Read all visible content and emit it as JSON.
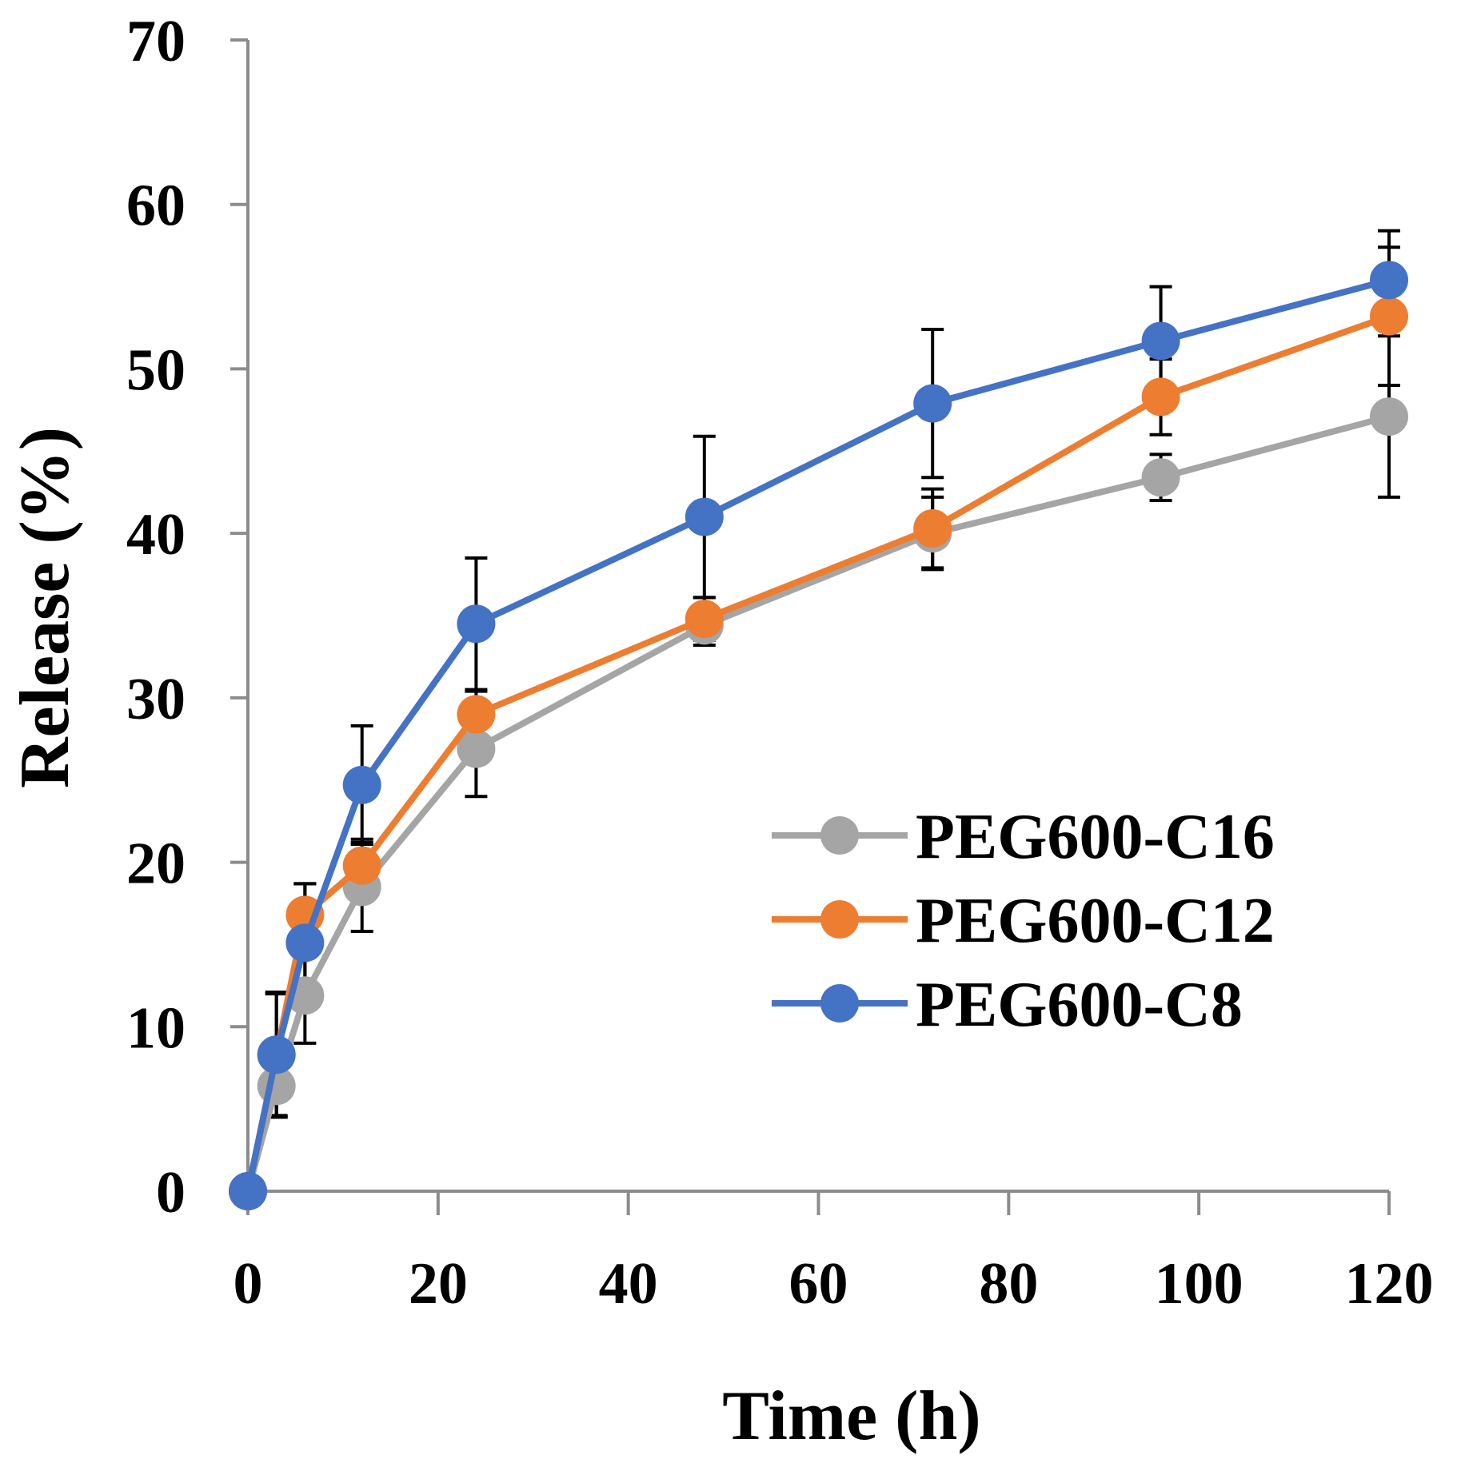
{
  "chart_data": {
    "type": "line",
    "title": "",
    "xlabel": "Time (h)",
    "ylabel": "Release (%)",
    "xlim": [
      0,
      120
    ],
    "ylim": [
      0,
      70
    ],
    "xticks": [
      0,
      20,
      40,
      60,
      80,
      100,
      120
    ],
    "yticks": [
      0,
      10,
      20,
      30,
      40,
      50,
      60,
      70
    ],
    "grid": false,
    "legend_position": "right-middle",
    "x": [
      0,
      3,
      6,
      12,
      24,
      48,
      72,
      96,
      120
    ],
    "series": [
      {
        "name": "PEG600-C16",
        "color": "#a5a5a5",
        "values": [
          0,
          6.4,
          11.9,
          18.5,
          26.9,
          34.4,
          40.0,
          43.4,
          47.1
        ],
        "errors": [
          0,
          1.9,
          2.9,
          2.7,
          2.9,
          1.2,
          2.2,
          1.4,
          4.9
        ]
      },
      {
        "name": "PEG600-C12",
        "color": "#ed7d31",
        "values": [
          0,
          8.3,
          16.8,
          19.8,
          29.0,
          34.8,
          40.3,
          48.3,
          53.2
        ],
        "errors": [
          0,
          3.8,
          1.9,
          1.6,
          1.4,
          1.3,
          2.4,
          2.3,
          4.2
        ]
      },
      {
        "name": "PEG600-C8",
        "color": "#4472c4",
        "values": [
          0,
          8.3,
          15.1,
          24.7,
          34.5,
          41.0,
          47.9,
          51.7,
          55.4
        ],
        "errors": [
          0,
          3.7,
          3.6,
          3.6,
          4.0,
          4.9,
          4.5,
          3.3,
          3.0
        ]
      }
    ]
  }
}
